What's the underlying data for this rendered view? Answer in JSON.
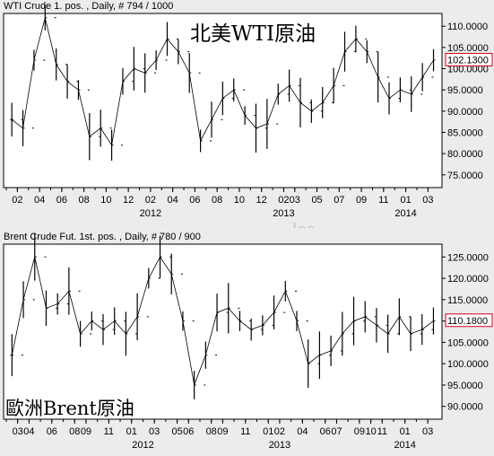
{
  "panels": [
    {
      "header": "WTI Crude 1. pos. , Daily, # 794 / 1000",
      "annotation": "北美WTI原油"
    },
    {
      "header": "Brent Crude Fut. 1st. pos. , Daily, # 780 / 900",
      "annotation": "歐洲Brent原油"
    }
  ],
  "watermark": "Joe",
  "chart_data": [
    {
      "type": "bar",
      "style": "ohlc",
      "title": "北美WTI原油",
      "xlabel": "",
      "ylabel": "",
      "ylim": [
        72,
        113
      ],
      "yticks": [
        "110.0000",
        "105.0000",
        "100.0000",
        "95.0000",
        "90.0000",
        "85.0000",
        "80.0000",
        "75.0000"
      ],
      "ytick_values": [
        110,
        105,
        100,
        95,
        90,
        85,
        80,
        75
      ],
      "last_value": "102.1300",
      "month_ticks": [
        "02",
        "04",
        "06",
        "08",
        "10",
        "12",
        "02",
        "04",
        "06",
        "08",
        "10",
        "12",
        "02",
        "04",
        "06",
        "08",
        "10",
        "12",
        "02",
        "04",
        "06",
        "08",
        "10",
        "12",
        "02",
        "04",
        "06",
        "08",
        "10",
        "12",
        "02",
        "04",
        "06"
      ],
      "xtick_labels": [
        "02",
        "04",
        "06",
        "08",
        "10",
        "12",
        "02",
        "04",
        "06",
        "08",
        "10",
        "12",
        "02",
        "03",
        "05",
        "07",
        "09",
        "11",
        "01",
        "03"
      ],
      "xtick_months": [
        "2011-02",
        "2011-04",
        "2011-06",
        "2011-08",
        "2011-10",
        "2011-12",
        "2012-02",
        "2012-04",
        "2012-06",
        "2012-08",
        "2012-10",
        "2012-12",
        "2013-02",
        "2013-03",
        "2013-05",
        "2013-07",
        "2013-09",
        "2013-11",
        "2014-01",
        "2014-03"
      ],
      "year_labels": [
        "2012",
        "2013",
        "2014"
      ],
      "year_months": [
        "2012-02",
        "2013-02",
        "2014-01"
      ],
      "x_start": "2011-01",
      "x_end": "2014-03",
      "series": [
        {
          "x": [
            "2011-01",
            "2011-02",
            "2011-03",
            "2011-04",
            "2011-05",
            "2011-06",
            "2011-07",
            "2011-08",
            "2011-09",
            "2011-10",
            "2011-11",
            "2011-12",
            "2012-01",
            "2012-02",
            "2012-03",
            "2012-04",
            "2012-05",
            "2012-06",
            "2012-07",
            "2012-08",
            "2012-09",
            "2012-10",
            "2012-11",
            "2012-12",
            "2013-01",
            "2013-02",
            "2013-03",
            "2013-04",
            "2013-05",
            "2013-06",
            "2013-07",
            "2013-08",
            "2013-09",
            "2013-10",
            "2013-11",
            "2013-12",
            "2014-01",
            "2014-02",
            "2014-03"
          ],
          "values": [
            88,
            86,
            102,
            112,
            101,
            97,
            95,
            84,
            86,
            82,
            97,
            100,
            99,
            102,
            107,
            104,
            99,
            83,
            88,
            93,
            95,
            89,
            86,
            87,
            94,
            96,
            92,
            90,
            92,
            96,
            104,
            107,
            104,
            98,
            93,
            95,
            94,
            98,
            102
          ]
        }
      ]
    },
    {
      "type": "bar",
      "style": "ohlc",
      "title": "歐洲Brent原油",
      "xlabel": "",
      "ylabel": "",
      "ylim": [
        87,
        128
      ],
      "yticks": [
        "125.0000",
        "120.0000",
        "115.0000",
        "110.0000",
        "105.0000",
        "100.0000",
        "95.0000",
        "90.0000"
      ],
      "ytick_values": [
        125,
        120,
        115,
        110,
        105,
        100,
        95,
        90
      ],
      "last_value": "110.1800",
      "xtick_labels": [
        "03",
        "04",
        "06",
        "08",
        "09",
        "11",
        "01",
        "03",
        "05",
        "06",
        "08",
        "09",
        "11",
        "01",
        "02",
        "04",
        "06",
        "07",
        "09",
        "10",
        "11",
        "01",
        "03"
      ],
      "xtick_months": [
        "2011-03",
        "2011-04",
        "2011-06",
        "2011-08",
        "2011-09",
        "2011-11",
        "2012-01",
        "2012-03",
        "2012-05",
        "2012-06",
        "2012-08",
        "2012-09",
        "2012-11",
        "2013-01",
        "2013-02",
        "2013-04",
        "2013-06",
        "2013-07",
        "2013-09",
        "2013-10",
        "2013-11",
        "2014-01",
        "2014-03"
      ],
      "year_labels": [
        "2012",
        "2013",
        "2014"
      ],
      "year_months": [
        "2012-02",
        "2013-02",
        "2014-01"
      ],
      "x_start": "2011-02",
      "x_end": "2014-03",
      "series": [
        {
          "x": [
            "2011-02",
            "2011-03",
            "2011-04",
            "2011-05",
            "2011-06",
            "2011-07",
            "2011-08",
            "2011-09",
            "2011-10",
            "2011-11",
            "2011-12",
            "2012-01",
            "2012-02",
            "2012-03",
            "2012-04",
            "2012-05",
            "2012-06",
            "2012-07",
            "2012-08",
            "2012-09",
            "2012-10",
            "2012-11",
            "2012-12",
            "2013-01",
            "2013-02",
            "2013-03",
            "2013-04",
            "2013-05",
            "2013-06",
            "2013-07",
            "2013-08",
            "2013-09",
            "2013-10",
            "2013-11",
            "2013-12",
            "2014-01",
            "2014-02",
            "2014-03"
          ],
          "values": [
            102,
            115,
            125,
            113,
            114,
            117,
            107,
            110,
            108,
            110,
            107,
            111,
            120,
            125,
            121,
            110,
            95,
            102,
            112,
            113,
            110,
            108,
            109,
            112,
            117,
            110,
            100,
            102,
            103,
            107,
            110,
            111,
            109,
            107,
            111,
            107,
            108,
            110
          ]
        }
      ]
    }
  ]
}
